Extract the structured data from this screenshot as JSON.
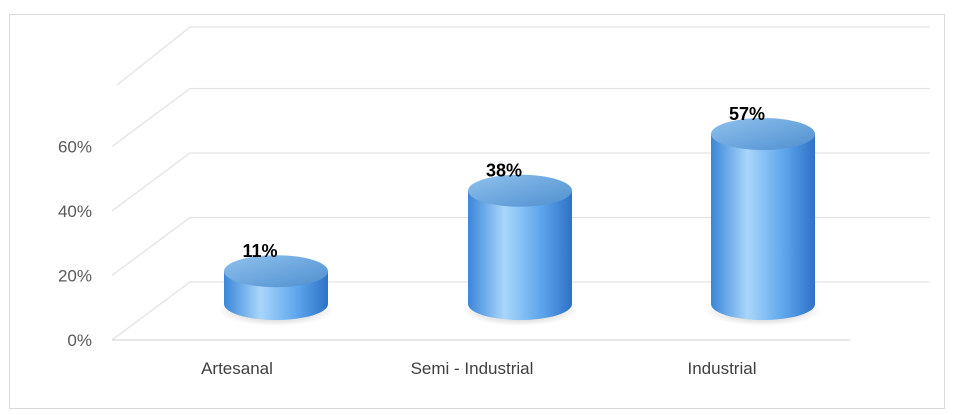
{
  "chart_data": {
    "type": "bar",
    "style": "3d-cylinder",
    "categories": [
      "Artesanal",
      "Semi - Industrial",
      "Industrial"
    ],
    "values": [
      11,
      38,
      57
    ],
    "data_labels": [
      "11%",
      "38%",
      "57%"
    ],
    "y_ticks": [
      "0%",
      "20%",
      "40%",
      "60%"
    ],
    "ylim": [
      0,
      60
    ],
    "grid": true,
    "colors": {
      "bar_top": "#5b9bd5",
      "bar_light": "#a9d3f5",
      "bar_dark": "#2e75c8",
      "grid": "#e3e3e3"
    }
  }
}
